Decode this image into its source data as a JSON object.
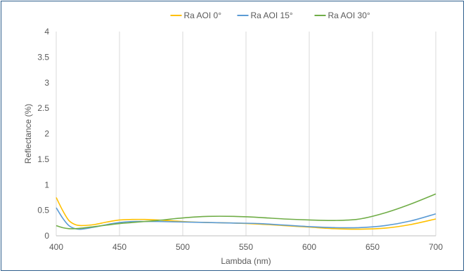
{
  "chart_data": {
    "type": "line",
    "xlabel": "Lambda (nm)",
    "ylabel": "Reflectance (%)",
    "xlim": [
      400,
      700
    ],
    "ylim": [
      0,
      4
    ],
    "x_ticks": [
      "400",
      "450",
      "500",
      "550",
      "600",
      "650",
      "700"
    ],
    "y_ticks": [
      "0",
      "0.5",
      "1",
      "1.5",
      "2",
      "2.5",
      "3",
      "3.5",
      "4"
    ],
    "grid": "vertical",
    "legend_position": "top",
    "series": [
      {
        "name": "Ra AOI 0°",
        "color": "#ffc000",
        "x": [
          400,
          405,
          410,
          415,
          420,
          430,
          440,
          450,
          460,
          470,
          480,
          500,
          520,
          540,
          560,
          580,
          600,
          620,
          640,
          660,
          680,
          700
        ],
        "y": [
          0.75,
          0.5,
          0.3,
          0.22,
          0.2,
          0.22,
          0.27,
          0.31,
          0.32,
          0.32,
          0.31,
          0.28,
          0.26,
          0.25,
          0.23,
          0.2,
          0.17,
          0.14,
          0.13,
          0.15,
          0.22,
          0.33
        ]
      },
      {
        "name": "Ra AOI 15°",
        "color": "#5b9bd5",
        "x": [
          400,
          405,
          410,
          415,
          420,
          430,
          440,
          450,
          460,
          470,
          480,
          500,
          520,
          540,
          560,
          580,
          600,
          620,
          640,
          660,
          680,
          700
        ],
        "y": [
          0.55,
          0.35,
          0.2,
          0.14,
          0.13,
          0.17,
          0.22,
          0.26,
          0.28,
          0.28,
          0.28,
          0.27,
          0.26,
          0.25,
          0.24,
          0.21,
          0.18,
          0.16,
          0.16,
          0.2,
          0.29,
          0.43
        ]
      },
      {
        "name": "Ra AOI 30°",
        "color": "#70ad47",
        "x": [
          400,
          405,
          410,
          415,
          420,
          430,
          440,
          450,
          460,
          470,
          480,
          500,
          520,
          540,
          560,
          580,
          600,
          620,
          640,
          660,
          680,
          700
        ],
        "y": [
          0.2,
          0.16,
          0.14,
          0.14,
          0.15,
          0.18,
          0.21,
          0.24,
          0.26,
          0.28,
          0.3,
          0.35,
          0.38,
          0.38,
          0.36,
          0.33,
          0.31,
          0.3,
          0.33,
          0.45,
          0.62,
          0.82
        ]
      }
    ]
  }
}
